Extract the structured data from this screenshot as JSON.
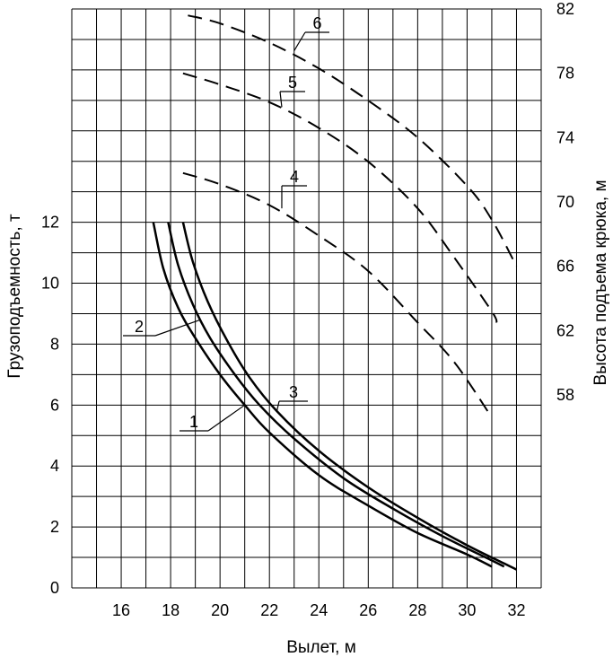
{
  "chart_data": {
    "type": "line",
    "xlabel": "Вылет, м",
    "ylabel_left": "Грузоподъемность, т",
    "ylabel_right": "Высота подъема крюка, м",
    "x_ticks": [
      "16",
      "18",
      "20",
      "22",
      "24",
      "26",
      "28",
      "30",
      "32"
    ],
    "y_left_ticks": [
      "0",
      "2",
      "4",
      "6",
      "8",
      "10",
      "12"
    ],
    "y_right_ticks": [
      "58",
      "62",
      "66",
      "70",
      "74",
      "78",
      "82"
    ],
    "xlim": [
      14,
      33
    ],
    "ylim_left": [
      0,
      19
    ],
    "ylim_right": [
      46,
      82
    ],
    "grid": true,
    "series": [
      {
        "name": "1",
        "axis": "left",
        "style": "solid",
        "x": [
          17.3,
          17.7,
          18.3,
          19.0,
          20.0,
          21.0,
          22.0,
          24.0,
          26.0,
          28.0,
          30.0,
          31.0
        ],
        "y": [
          12,
          10.5,
          9.2,
          8.2,
          7.0,
          6.0,
          5.1,
          3.7,
          2.7,
          1.8,
          1.1,
          0.7
        ]
      },
      {
        "name": "2",
        "axis": "left",
        "style": "solid",
        "x": [
          17.9,
          18.3,
          18.9,
          19.6,
          20.6,
          21.6,
          23.0,
          25.0,
          27.0,
          29.0,
          31.0,
          31.5
        ],
        "y": [
          12,
          10.6,
          9.3,
          8.2,
          7.0,
          6.0,
          4.9,
          3.6,
          2.6,
          1.7,
          0.9,
          0.7
        ]
      },
      {
        "name": "3",
        "axis": "left",
        "style": "solid",
        "x": [
          18.5,
          18.9,
          19.5,
          20.3,
          21.2,
          22.3,
          24.0,
          26.0,
          28.0,
          30.0,
          31.5,
          32.0
        ],
        "y": [
          12,
          10.7,
          9.4,
          8.1,
          6.9,
          5.8,
          4.5,
          3.3,
          2.3,
          1.4,
          0.8,
          0.6
        ]
      },
      {
        "name": "4",
        "axis": "right",
        "style": "dashed",
        "x": [
          18.5,
          20.0,
          22.0,
          24.0,
          26.0,
          28.0,
          29.5,
          31.0
        ],
        "y": [
          71.8,
          71.1,
          69.8,
          67.9,
          65.7,
          62.5,
          60.0,
          56.6
        ]
      },
      {
        "name": "5",
        "axis": "right",
        "style": "dashed",
        "x": [
          18.5,
          20.0,
          22.0,
          24.0,
          26.0,
          28.0,
          29.5,
          31.0,
          31.2
        ],
        "y": [
          78.0,
          77.3,
          76.2,
          74.6,
          72.5,
          69.6,
          66.5,
          63.2,
          62.5
        ]
      },
      {
        "name": "6",
        "axis": "right",
        "style": "dashed",
        "x": [
          18.7,
          20.0,
          22.0,
          24.0,
          26.0,
          28.0,
          30.0,
          31.0,
          32.0
        ],
        "y": [
          81.6,
          81.1,
          79.9,
          78.3,
          76.3,
          74.0,
          71.0,
          68.9,
          66.0
        ]
      }
    ]
  }
}
